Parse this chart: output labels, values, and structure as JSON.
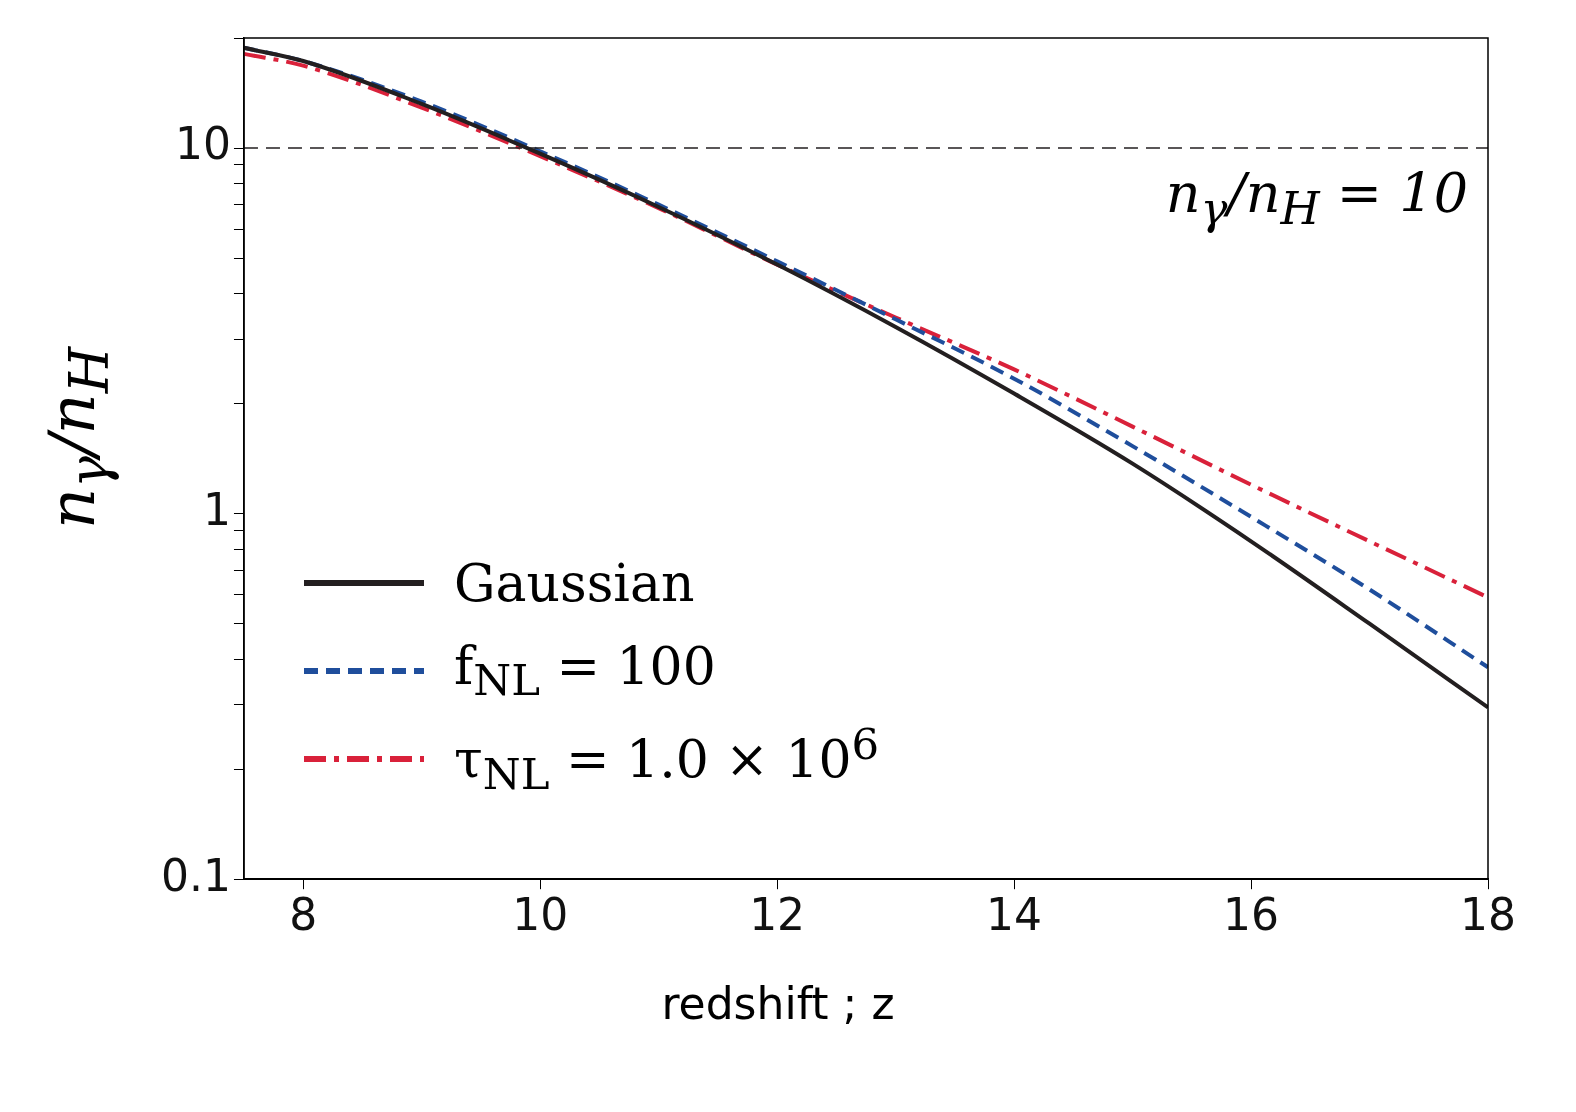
{
  "chart_data": {
    "type": "line",
    "xlabel": "redshift ; z",
    "ylabel": "n$_{γ}$/n$_{H}$",
    "x": [
      7.5,
      8,
      9,
      10,
      11,
      12,
      13,
      14,
      15,
      16,
      17,
      18
    ],
    "series": [
      {
        "name": "Gaussian",
        "color": "#231f20",
        "line_style": "solid",
        "values": [
          18.8,
          17.3,
          13.2,
          9.65,
          6.9,
          4.8,
          3.24,
          2.13,
          1.37,
          0.84,
          0.5,
          0.295
        ]
      },
      {
        "name": "f$_{NL}$ = 100",
        "color": "#1f4e9c",
        "line_style": "dashed",
        "values": [
          18.8,
          17.3,
          13.4,
          9.8,
          7.0,
          4.9,
          3.4,
          2.34,
          1.53,
          0.98,
          0.62,
          0.38
        ]
      },
      {
        "name": "τ$_{NL}$ = 1.0 × 10$^{6}$",
        "color": "#d9213a",
        "line_style": "dashdot",
        "values": [
          18.1,
          16.8,
          12.9,
          9.5,
          6.85,
          4.8,
          3.44,
          2.48,
          1.73,
          1.2,
          0.84,
          0.59
        ]
      }
    ],
    "log": "y",
    "grid": false,
    "legend": "bottom left",
    "marker": "none",
    "xlim": [
      7.5,
      18
    ],
    "xticks": [
      8,
      10,
      12,
      14,
      16,
      18
    ],
    "ylim": [
      0.1,
      20
    ],
    "yticks": [
      0.1,
      {
        "value": 0.2,
        "label": null
      },
      {
        "value": 0.3,
        "label": null
      },
      {
        "value": 0.4,
        "label": null
      },
      {
        "value": 0.5,
        "label": null
      },
      {
        "value": 0.6,
        "label": null
      },
      {
        "value": 0.7,
        "label": null
      },
      {
        "value": 0.8,
        "label": null
      },
      {
        "value": 0.9,
        "label": null
      },
      1,
      {
        "value": 2,
        "label": null
      },
      {
        "value": 3,
        "label": null
      },
      {
        "value": 4,
        "label": null
      },
      {
        "value": 5,
        "label": null
      },
      {
        "value": 6,
        "label": null
      },
      {
        "value": 7,
        "label": null
      },
      {
        "value": 8,
        "label": null
      },
      {
        "value": 9,
        "label": null
      },
      10,
      {
        "value": 20,
        "label": null
      }
    ],
    "ref_lines": [
      {
        "axis": "y",
        "value": 10,
        "label": "n$_{γ}$/n$_{H}$ = 10",
        "color": "#231f20",
        "line_style": "dashed"
      }
    ]
  }
}
